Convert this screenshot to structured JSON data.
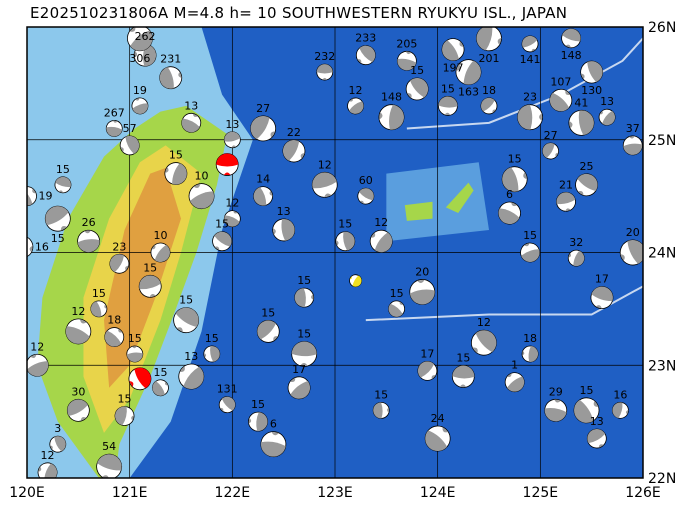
{
  "title": "E202510231806A M=4.8 h= 10 SOUTHWESTERN RYUKYU ISL., JAPAN",
  "map": {
    "lon_range": [
      120,
      126
    ],
    "lat_range": [
      22,
      26
    ],
    "lon_labels": [
      "120E",
      "121E",
      "122E",
      "123E",
      "124E",
      "125E",
      "126E"
    ],
    "lat_labels": [
      "22N",
      "23N",
      "24N",
      "25N",
      "26N"
    ],
    "grid": true,
    "colors": {
      "deep_sea": "#1f5fc4",
      "shallow_sea": "#8cc8ec",
      "land_low": "#a6d64a",
      "land_mid": "#e8d44a",
      "land_high": "#e0a040",
      "mechanism_fill": "#9a9a9a",
      "highlight_recent": "#ff0000",
      "highlight_event": "#f0e020"
    }
  },
  "events": [
    {
      "lon": 122.9,
      "lat": 25.6,
      "depth": "232"
    },
    {
      "lon": 123.3,
      "lat": 25.75,
      "depth": "233"
    },
    {
      "lon": 121.15,
      "lat": 25.75,
      "depth": "262"
    },
    {
      "lon": 121.1,
      "lat": 25.9,
      "depth": "306"
    },
    {
      "lon": 120.85,
      "lat": 25.1,
      "depth": "267"
    },
    {
      "lon": 120.0,
      "lat": 24.5,
      "depth": "19"
    },
    {
      "lon": 119.95,
      "lat": 24.05,
      "depth": "16"
    },
    {
      "lon": 120.3,
      "lat": 24.3,
      "depth": "15"
    },
    {
      "lon": 120.35,
      "lat": 24.6,
      "depth": "15"
    },
    {
      "lon": 121.0,
      "lat": 24.95,
      "depth": "57"
    },
    {
      "lon": 121.45,
      "lat": 24.7,
      "depth": "15"
    },
    {
      "lon": 121.7,
      "lat": 24.5,
      "depth": "10"
    },
    {
      "lon": 122.0,
      "lat": 24.3,
      "depth": "12"
    },
    {
      "lon": 122.3,
      "lat": 24.5,
      "depth": "14"
    },
    {
      "lon": 122.6,
      "lat": 24.9,
      "depth": "22"
    },
    {
      "lon": 122.9,
      "lat": 24.6,
      "depth": "12"
    },
    {
      "lon": 123.3,
      "lat": 24.5,
      "depth": "60"
    },
    {
      "lon": 123.1,
      "lat": 24.1,
      "depth": "15"
    },
    {
      "lon": 123.45,
      "lat": 24.1,
      "depth": "12"
    },
    {
      "lon": 123.85,
      "lat": 23.65,
      "depth": "20"
    },
    {
      "lon": 123.6,
      "lat": 23.5,
      "depth": "15"
    },
    {
      "lon": 122.7,
      "lat": 23.6,
      "depth": "15"
    },
    {
      "lon": 122.35,
      "lat": 23.3,
      "depth": "15"
    },
    {
      "lon": 122.7,
      "lat": 23.1,
      "depth": "15"
    },
    {
      "lon": 121.95,
      "lat": 22.65,
      "depth": "131"
    },
    {
      "lon": 122.25,
      "lat": 22.5,
      "depth": "15"
    },
    {
      "lon": 122.65,
      "lat": 22.8,
      "depth": "17"
    },
    {
      "lon": 122.4,
      "lat": 22.3,
      "depth": "6"
    },
    {
      "lon": 121.3,
      "lat": 22.8,
      "depth": "15"
    },
    {
      "lon": 120.95,
      "lat": 22.55,
      "depth": "15"
    },
    {
      "lon": 120.5,
      "lat": 22.6,
      "depth": "30"
    },
    {
      "lon": 120.8,
      "lat": 22.1,
      "depth": "54"
    },
    {
      "lon": 120.3,
      "lat": 22.3,
      "depth": "3"
    },
    {
      "lon": 120.2,
      "lat": 22.05,
      "depth": "12"
    },
    {
      "lon": 120.1,
      "lat": 23.0,
      "depth": "12"
    },
    {
      "lon": 120.5,
      "lat": 23.3,
      "depth": "12"
    },
    {
      "lon": 120.7,
      "lat": 23.5,
      "depth": "15"
    },
    {
      "lon": 120.9,
      "lat": 23.9,
      "depth": "23"
    },
    {
      "lon": 121.2,
      "lat": 23.7,
      "depth": "15"
    },
    {
      "lon": 121.55,
      "lat": 23.4,
      "depth": "15"
    },
    {
      "lon": 121.8,
      "lat": 23.1,
      "depth": "15"
    },
    {
      "lon": 121.3,
      "lat": 24.0,
      "depth": "10"
    },
    {
      "lon": 120.6,
      "lat": 24.1,
      "depth": "26"
    },
    {
      "lon": 124.0,
      "lat": 22.35,
      "depth": "24"
    },
    {
      "lon": 123.45,
      "lat": 22.6,
      "depth": "15"
    },
    {
      "lon": 123.9,
      "lat": 22.95,
      "depth": "17"
    },
    {
      "lon": 124.25,
      "lat": 22.9,
      "depth": "15"
    },
    {
      "lon": 124.45,
      "lat": 23.2,
      "depth": "12"
    },
    {
      "lon": 124.9,
      "lat": 23.1,
      "depth": "18"
    },
    {
      "lon": 124.75,
      "lat": 22.85,
      "depth": "1"
    },
    {
      "lon": 125.15,
      "lat": 22.6,
      "depth": "29"
    },
    {
      "lon": 125.45,
      "lat": 22.6,
      "depth": "15"
    },
    {
      "lon": 125.78,
      "lat": 22.6,
      "depth": "16"
    },
    {
      "lon": 125.55,
      "lat": 22.35,
      "depth": "13"
    },
    {
      "lon": 125.6,
      "lat": 23.6,
      "depth": "17"
    },
    {
      "lon": 125.9,
      "lat": 24.0,
      "depth": "20"
    },
    {
      "lon": 125.35,
      "lat": 23.95,
      "depth": "32"
    },
    {
      "lon": 124.9,
      "lat": 24.0,
      "depth": "15"
    },
    {
      "lon": 124.7,
      "lat": 24.35,
      "depth": "6"
    },
    {
      "lon": 124.75,
      "lat": 24.65,
      "depth": "15"
    },
    {
      "lon": 125.1,
      "lat": 24.9,
      "depth": "27"
    },
    {
      "lon": 125.25,
      "lat": 24.45,
      "depth": "21"
    },
    {
      "lon": 125.45,
      "lat": 24.6,
      "depth": "25"
    },
    {
      "lon": 125.4,
      "lat": 25.15,
      "depth": "41"
    },
    {
      "lon": 125.65,
      "lat": 25.2,
      "depth": "13"
    },
    {
      "lon": 125.9,
      "lat": 24.95,
      "depth": "37"
    },
    {
      "lon": 125.2,
      "lat": 25.35,
      "depth": "107"
    },
    {
      "lon": 124.9,
      "lat": 25.2,
      "depth": "23"
    },
    {
      "lon": 124.5,
      "lat": 25.3,
      "depth": "18"
    },
    {
      "lon": 124.1,
      "lat": 25.3,
      "depth": "15"
    },
    {
      "lon": 123.8,
      "lat": 25.45,
      "depth": "15"
    },
    {
      "lon": 123.55,
      "lat": 25.2,
      "depth": "148"
    },
    {
      "lon": 123.2,
      "lat": 25.3,
      "depth": "12"
    },
    {
      "lon": 123.7,
      "lat": 25.7,
      "depth": "205"
    },
    {
      "lon": 124.15,
      "lat": 25.8,
      "depth": "197"
    },
    {
      "lon": 124.5,
      "lat": 25.9,
      "depth": "201"
    },
    {
      "lon": 124.9,
      "lat": 25.85,
      "depth": "141"
    },
    {
      "lon": 125.3,
      "lat": 25.9,
      "depth": "148"
    },
    {
      "lon": 125.5,
      "lat": 25.6,
      "depth": "130"
    },
    {
      "lon": 124.3,
      "lat": 25.6,
      "depth": "163"
    },
    {
      "lon": 121.1,
      "lat": 25.3,
      "depth": "19"
    },
    {
      "lon": 121.6,
      "lat": 25.15,
      "depth": "13"
    },
    {
      "lon": 121.4,
      "lat": 25.55,
      "depth": "231"
    },
    {
      "lon": 122.3,
      "lat": 25.1,
      "depth": "27"
    },
    {
      "lon": 122.0,
      "lat": 25.0,
      "depth": "13"
    },
    {
      "lon": 121.9,
      "lat": 24.1,
      "depth": "15"
    },
    {
      "lon": 122.5,
      "lat": 24.2,
      "depth": "13"
    },
    {
      "lon": 121.6,
      "lat": 22.9,
      "depth": "13"
    },
    {
      "lon": 121.05,
      "lat": 23.1,
      "depth": "15"
    },
    {
      "lon": 120.85,
      "lat": 23.25,
      "depth": "18"
    }
  ],
  "highlight_events": [
    {
      "lon": 121.95,
      "lat": 24.78,
      "type": "recent"
    },
    {
      "lon": 121.1,
      "lat": 22.88,
      "type": "recent"
    },
    {
      "lon": 123.2,
      "lat": 23.75,
      "type": "main"
    }
  ]
}
